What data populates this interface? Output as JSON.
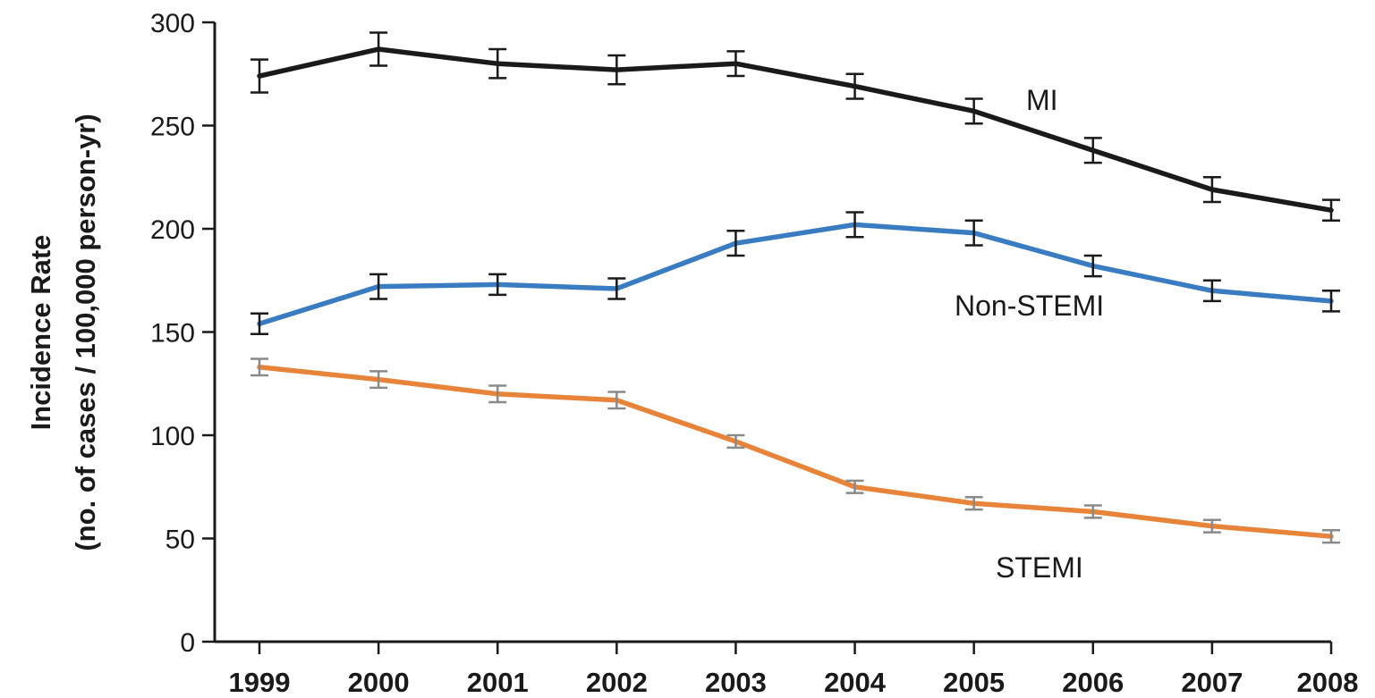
{
  "chart_data": {
    "type": "line",
    "title": "",
    "xlabel": "",
    "ylabel": [
      "Incidence Rate",
      "(no. of cases / 100,000 person-yr)"
    ],
    "x": [
      "1999",
      "2000",
      "2001",
      "2002",
      "2003",
      "2004",
      "2005",
      "2006",
      "2007",
      "2008"
    ],
    "ylim": [
      0,
      300
    ],
    "yticks": [
      0,
      50,
      100,
      150,
      200,
      250,
      300
    ],
    "grid": false,
    "legend": "inline labels",
    "series": [
      {
        "name": "MI",
        "color": "#1a1a1a",
        "values": [
          274,
          287,
          280,
          277,
          280,
          269,
          257,
          238,
          219,
          209
        ],
        "error": [
          8,
          8,
          7,
          7,
          6,
          6,
          6,
          6,
          6,
          5
        ]
      },
      {
        "name": "Non-STEMI",
        "color": "#3a7cc2",
        "values": [
          154,
          172,
          173,
          171,
          193,
          202,
          198,
          182,
          170,
          165
        ],
        "error": [
          5,
          6,
          5,
          5,
          6,
          6,
          6,
          5,
          5,
          5
        ]
      },
      {
        "name": "STEMI",
        "color": "#e8843a",
        "values": [
          133,
          127,
          120,
          117,
          97,
          75,
          67,
          63,
          56,
          51
        ],
        "error": [
          4,
          4,
          4,
          4,
          3,
          3,
          3,
          3,
          3,
          3
        ]
      }
    ]
  }
}
